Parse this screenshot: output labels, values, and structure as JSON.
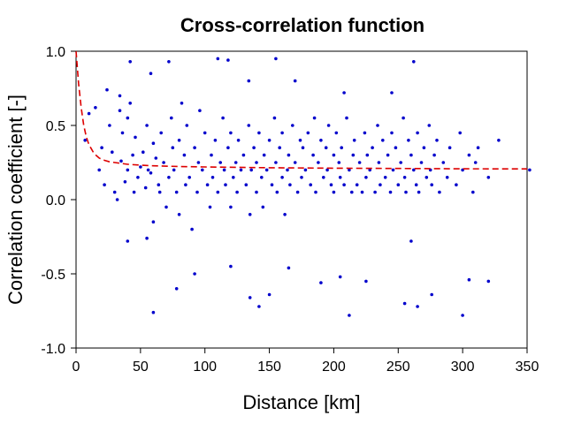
{
  "chart_data": {
    "type": "scatter",
    "title": "Cross-correlation function",
    "xlabel": "Distance [km]",
    "ylabel": "Correlation coefficient [-]",
    "xlim": [
      0,
      350
    ],
    "ylim": [
      -1.0,
      1.0
    ],
    "xticks": [
      0,
      50,
      100,
      150,
      200,
      250,
      300,
      350
    ],
    "xtick_labels": [
      "0",
      "50",
      "100",
      "150",
      "200",
      "250",
      "300",
      "350"
    ],
    "yticks": [
      -1.0,
      -0.5,
      0.0,
      0.5,
      1.0
    ],
    "ytick_labels": [
      "-1.0",
      "-0.5",
      "0.0",
      "0.5",
      "1.0"
    ],
    "grid": false,
    "colors": {
      "points": "#0000cc",
      "fit": "#dd0000"
    },
    "series": [
      {
        "kind": "points",
        "x": [
          7,
          10,
          15,
          18,
          20,
          22,
          24,
          26,
          28,
          30,
          32,
          34,
          35,
          36,
          38,
          40,
          40,
          42,
          44,
          45,
          46,
          48,
          50,
          52,
          54,
          55,
          56,
          58,
          60,
          60,
          62,
          64,
          65,
          66,
          68,
          70,
          72,
          74,
          75,
          76,
          78,
          80,
          80,
          82,
          84,
          85,
          86,
          88,
          90,
          92,
          94,
          95,
          96,
          98,
          100,
          102,
          104,
          105,
          106,
          108,
          110,
          112,
          114,
          115,
          116,
          118,
          120,
          120,
          122,
          124,
          125,
          126,
          128,
          130,
          132,
          134,
          135,
          136,
          138,
          140,
          140,
          142,
          144,
          145,
          146,
          148,
          150,
          152,
          154,
          155,
          156,
          158,
          160,
          160,
          162,
          164,
          165,
          166,
          168,
          170,
          172,
          174,
          175,
          176,
          178,
          180,
          182,
          184,
          185,
          186,
          188,
          190,
          192,
          194,
          195,
          196,
          198,
          200,
          200,
          202,
          204,
          205,
          206,
          208,
          210,
          212,
          214,
          215,
          216,
          218,
          220,
          222,
          224,
          225,
          226,
          228,
          230,
          232,
          234,
          235,
          236,
          238,
          240,
          242,
          244,
          245,
          246,
          248,
          250,
          252,
          254,
          255,
          256,
          258,
          260,
          262,
          264,
          265,
          266,
          268,
          270,
          272,
          274,
          275,
          276,
          278,
          280,
          282,
          285,
          288,
          290,
          295,
          298,
          300,
          305,
          308,
          310,
          312,
          320,
          328,
          352,
          34,
          42,
          55,
          60,
          78,
          92,
          120,
          135,
          142,
          150,
          165,
          190,
          205,
          212,
          225,
          255,
          260,
          265,
          276,
          300,
          305,
          320,
          40,
          58,
          72,
          110,
          118,
          134,
          155,
          170,
          208,
          245,
          262
        ],
        "y": [
          0.4,
          0.58,
          0.62,
          0.2,
          0.35,
          0.1,
          0.74,
          0.5,
          0.32,
          0.05,
          0.0,
          0.6,
          0.26,
          0.45,
          0.12,
          0.2,
          0.55,
          0.65,
          0.3,
          0.05,
          0.42,
          0.15,
          0.22,
          0.32,
          0.08,
          0.5,
          0.2,
          0.18,
          0.38,
          -0.15,
          0.28,
          0.1,
          0.05,
          0.45,
          0.25,
          -0.05,
          0.15,
          0.55,
          0.35,
          0.2,
          0.05,
          -0.1,
          0.4,
          0.65,
          0.3,
          0.1,
          0.5,
          0.15,
          -0.2,
          0.35,
          0.05,
          0.25,
          0.6,
          0.2,
          0.45,
          0.1,
          -0.05,
          0.3,
          0.15,
          0.4,
          0.05,
          0.25,
          0.55,
          0.2,
          0.1,
          0.35,
          -0.05,
          0.45,
          0.15,
          0.25,
          0.05,
          0.4,
          0.2,
          0.3,
          0.1,
          0.5,
          -0.1,
          0.2,
          0.35,
          0.05,
          0.25,
          0.45,
          0.15,
          -0.05,
          0.3,
          0.2,
          0.4,
          0.1,
          0.55,
          0.25,
          0.05,
          0.35,
          0.15,
          0.45,
          -0.1,
          0.2,
          0.3,
          0.1,
          0.5,
          0.25,
          0.05,
          0.4,
          0.15,
          0.35,
          0.2,
          0.45,
          0.1,
          0.3,
          0.55,
          0.05,
          0.25,
          0.4,
          0.15,
          0.35,
          0.2,
          0.5,
          0.1,
          0.3,
          0.05,
          0.45,
          0.25,
          0.15,
          0.35,
          0.1,
          0.55,
          0.2,
          0.05,
          0.3,
          0.4,
          0.1,
          0.25,
          0.05,
          0.45,
          0.15,
          0.3,
          0.2,
          0.35,
          0.05,
          0.5,
          0.25,
          0.1,
          0.4,
          0.15,
          0.3,
          0.05,
          0.45,
          0.2,
          0.35,
          0.1,
          0.25,
          0.55,
          0.15,
          0.05,
          0.4,
          0.3,
          0.2,
          0.1,
          0.45,
          0.05,
          0.25,
          0.35,
          0.15,
          0.5,
          0.2,
          0.1,
          0.3,
          0.4,
          0.05,
          0.25,
          0.15,
          0.35,
          0.1,
          0.45,
          0.2,
          0.3,
          0.05,
          0.25,
          0.35,
          0.15,
          0.4,
          0.2,
          0.7,
          0.93,
          -0.26,
          -0.76,
          -0.6,
          -0.5,
          -0.45,
          -0.66,
          -0.72,
          -0.64,
          -0.46,
          -0.56,
          -0.52,
          -0.78,
          -0.55,
          -0.7,
          -0.28,
          -0.72,
          -0.64,
          -0.78,
          -0.54,
          -0.55,
          -0.28,
          0.85,
          0.93,
          0.95,
          0.94,
          0.8,
          0.95,
          0.8,
          0.72,
          0.72,
          0.93
        ]
      },
      {
        "kind": "fitted-curve",
        "x": [
          0,
          2,
          4,
          6,
          8,
          10,
          14,
          18,
          22,
          26,
          30,
          40,
          50,
          60,
          80,
          100,
          150,
          200,
          250,
          300,
          350
        ],
        "y": [
          1.0,
          0.78,
          0.62,
          0.5,
          0.42,
          0.37,
          0.31,
          0.28,
          0.265,
          0.255,
          0.25,
          0.238,
          0.232,
          0.228,
          0.223,
          0.22,
          0.215,
          0.212,
          0.21,
          0.208,
          0.207
        ]
      }
    ]
  }
}
